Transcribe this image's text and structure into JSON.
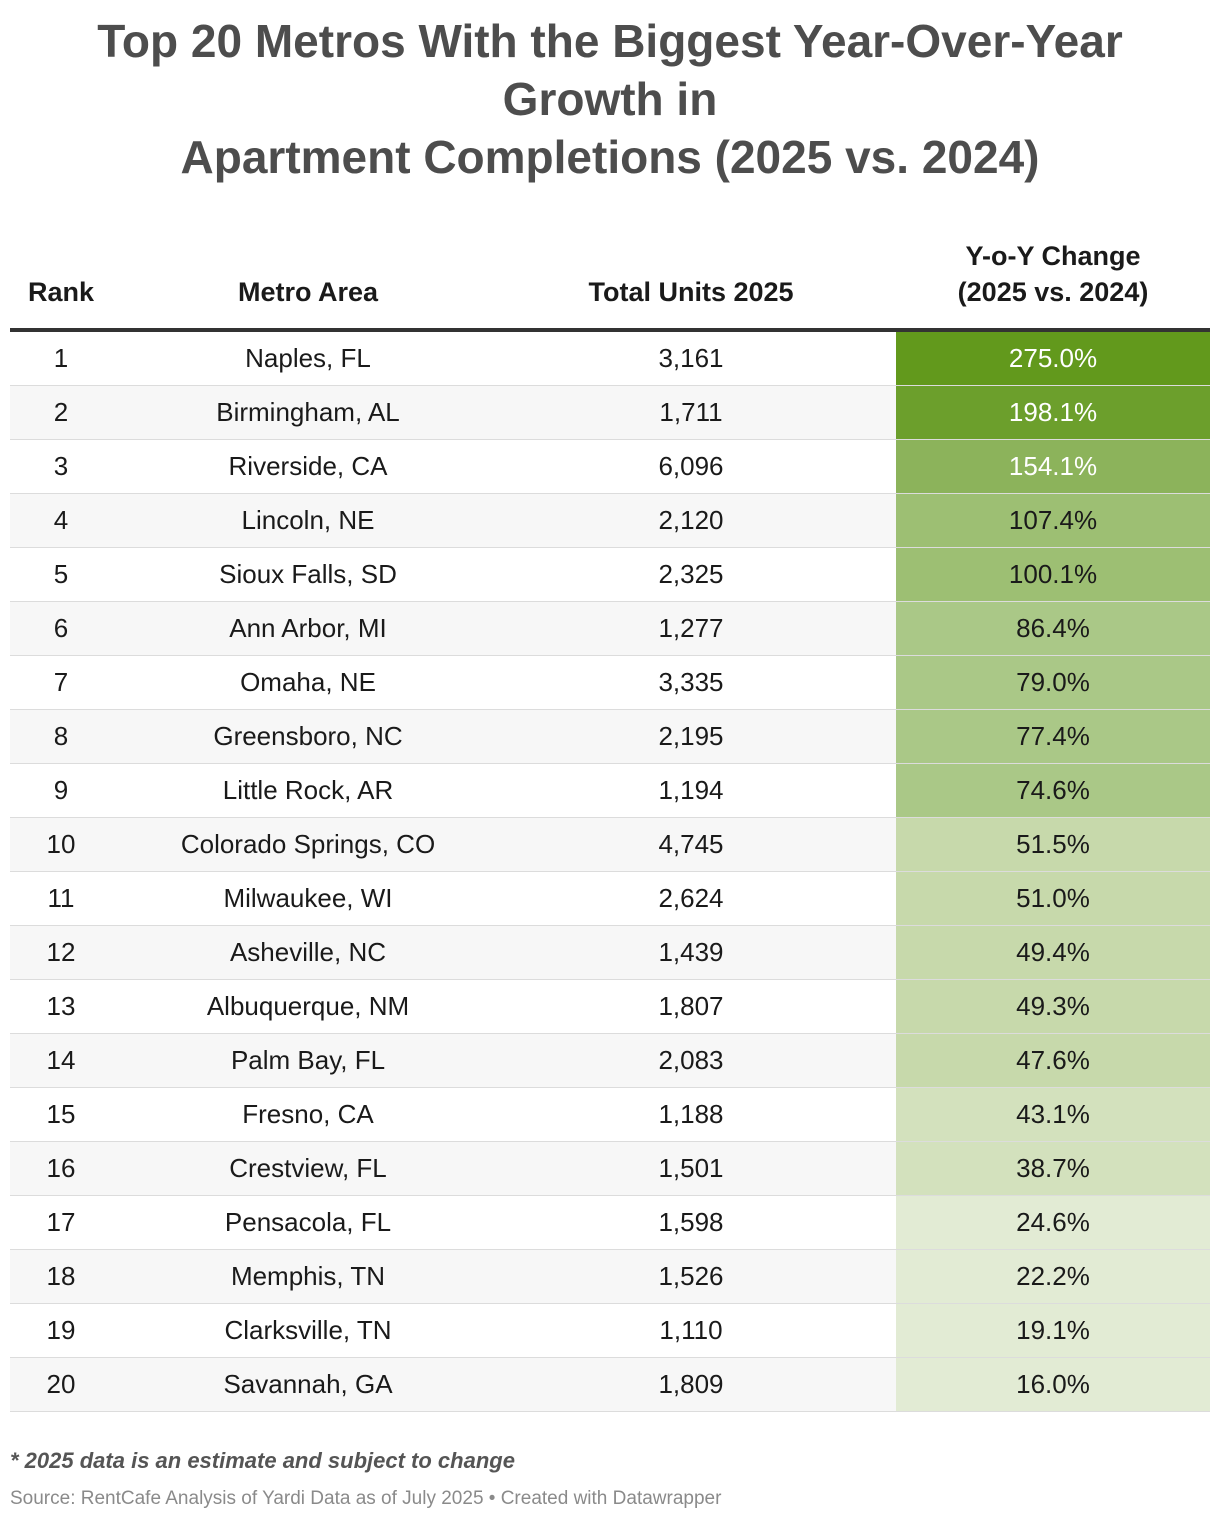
{
  "title": {
    "line1": "Top 20 Metros With the Biggest Year-Over-Year",
    "line2": "Growth in",
    "line3": "Apartment Completions (2025 vs. 2024)"
  },
  "columns": {
    "rank": "Rank",
    "metro": "Metro Area",
    "units": "Total Units 2025",
    "change_line1": "Y-o-Y Change",
    "change_line2": "(2025 vs. 2024)"
  },
  "chart_data": {
    "type": "table",
    "title": "Top 20 Metros With the Biggest Year-Over-Year Growth in Apartment Completions (2025 vs. 2024)",
    "columns": [
      "Rank",
      "Metro Area",
      "Total Units 2025",
      "Y-o-Y Change (2025 vs. 2024)"
    ],
    "rows": [
      {
        "rank": "1",
        "metro": "Naples, FL",
        "units": "3,161",
        "change": "275.0%",
        "change_value": 275.0
      },
      {
        "rank": "2",
        "metro": "Birmingham, AL",
        "units": "1,711",
        "change": "198.1%",
        "change_value": 198.1
      },
      {
        "rank": "3",
        "metro": "Riverside, CA",
        "units": "6,096",
        "change": "154.1%",
        "change_value": 154.1
      },
      {
        "rank": "4",
        "metro": "Lincoln, NE",
        "units": "2,120",
        "change": "107.4%",
        "change_value": 107.4
      },
      {
        "rank": "5",
        "metro": "Sioux Falls, SD",
        "units": "2,325",
        "change": "100.1%",
        "change_value": 100.1
      },
      {
        "rank": "6",
        "metro": "Ann Arbor, MI",
        "units": "1,277",
        "change": "86.4%",
        "change_value": 86.4
      },
      {
        "rank": "7",
        "metro": "Omaha, NE",
        "units": "3,335",
        "change": "79.0%",
        "change_value": 79.0
      },
      {
        "rank": "8",
        "metro": "Greensboro, NC",
        "units": "2,195",
        "change": "77.4%",
        "change_value": 77.4
      },
      {
        "rank": "9",
        "metro": "Little Rock, AR",
        "units": "1,194",
        "change": "74.6%",
        "change_value": 74.6
      },
      {
        "rank": "10",
        "metro": "Colorado Springs, CO",
        "units": "4,745",
        "change": "51.5%",
        "change_value": 51.5
      },
      {
        "rank": "11",
        "metro": "Milwaukee, WI",
        "units": "2,624",
        "change": "51.0%",
        "change_value": 51.0
      },
      {
        "rank": "12",
        "metro": "Asheville, NC",
        "units": "1,439",
        "change": "49.4%",
        "change_value": 49.4
      },
      {
        "rank": "13",
        "metro": "Albuquerque, NM",
        "units": "1,807",
        "change": "49.3%",
        "change_value": 49.3
      },
      {
        "rank": "14",
        "metro": "Palm Bay, FL",
        "units": "2,083",
        "change": "47.6%",
        "change_value": 47.6
      },
      {
        "rank": "15",
        "metro": "Fresno, CA",
        "units": "1,188",
        "change": "43.1%",
        "change_value": 43.1
      },
      {
        "rank": "16",
        "metro": "Crestview, FL",
        "units": "1,501",
        "change": "38.7%",
        "change_value": 38.7
      },
      {
        "rank": "17",
        "metro": "Pensacola, FL",
        "units": "1,598",
        "change": "24.6%",
        "change_value": 24.6
      },
      {
        "rank": "18",
        "metro": "Memphis, TN",
        "units": "1,526",
        "change": "22.2%",
        "change_value": 22.2
      },
      {
        "rank": "19",
        "metro": "Clarksville, TN",
        "units": "1,110",
        "change": "19.1%",
        "change_value": 19.1
      },
      {
        "rank": "20",
        "metro": "Savannah, GA",
        "units": "1,809",
        "change": "16.0%",
        "change_value": 16.0
      }
    ],
    "heatmap_colors": [
      "#62991c",
      "#6c9f2c",
      "#8cb35b",
      "#9dbf73",
      "#aac887",
      "#c7d9ab",
      "#d3e1bd",
      "#e2ebd4"
    ]
  },
  "footnote": "* 2025 data is an estimate and subject to change",
  "source": "Source: RentCafe Analysis of Yardi Data as of July 2025 • Created with Datawrapper"
}
